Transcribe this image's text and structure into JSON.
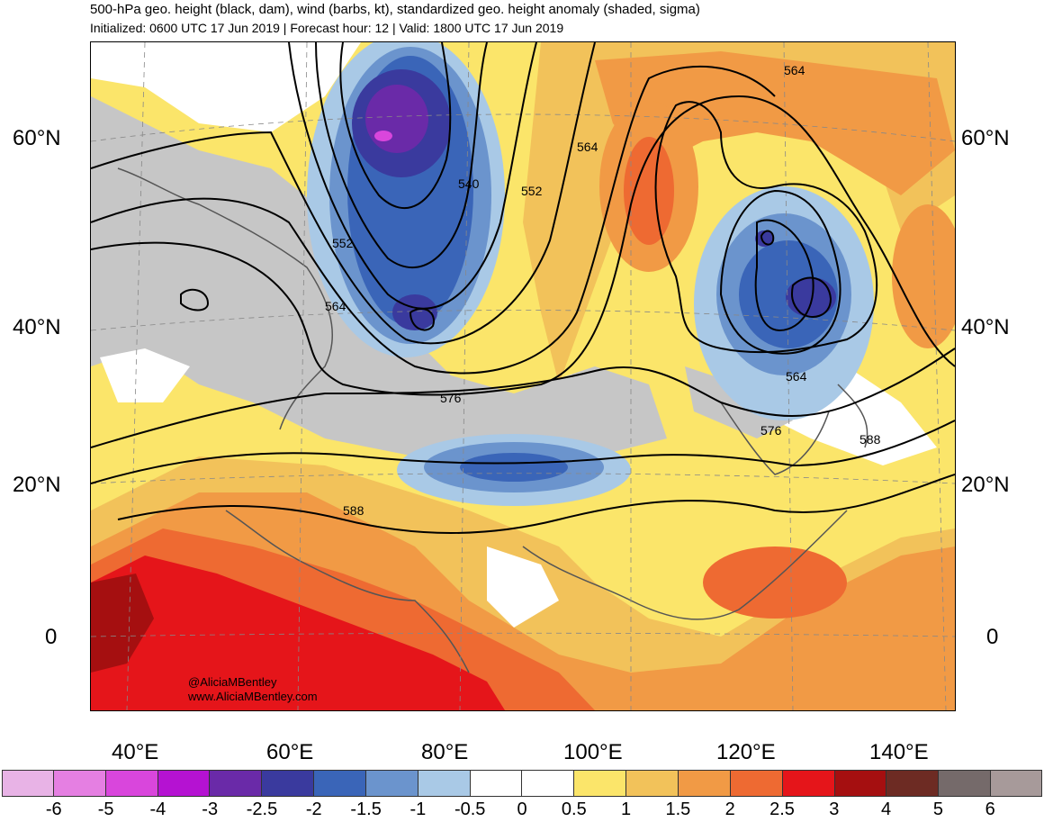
{
  "title": "500-hPa geo. height (black, dam), wind (barbs, kt), standardized geo. height anomaly (shaded, sigma)",
  "subtitle": "Initialized: 0600 UTC 17 Jun 2019 | Forecast hour: 12 | Valid: 1800 UTC 17 Jun 2019",
  "lat_labels": [
    "60°N",
    "40°N",
    "20°N",
    "0"
  ],
  "lon_labels": [
    "40°E",
    "60°E",
    "80°E",
    "100°E",
    "120°E",
    "140°E"
  ],
  "contour_labels": [
    "540",
    "552",
    "552",
    "564",
    "564",
    "564",
    "564",
    "576",
    "576",
    "588",
    "588"
  ],
  "credit": {
    "handle": "@AliciaMBentley",
    "site": "www.AliciaMBentley.com"
  },
  "colorbar": {
    "labels": [
      "-6",
      "-5",
      "-4",
      "-3",
      "-2.5",
      "-2",
      "-1.5",
      "-1",
      "-0.5",
      "0",
      "0.5",
      "1",
      "1.5",
      "2",
      "2.5",
      "3",
      "4",
      "5",
      "6"
    ],
    "colors": [
      "#e8b3e6",
      "#e57fe2",
      "#d946dc",
      "#b512d2",
      "#6a2aa8",
      "#3a3a9e",
      "#3a65b8",
      "#6b94cd",
      "#a9c9e6",
      "#ffffff",
      "#ffffff",
      "#fbe56a",
      "#f2c25a",
      "#f19a45",
      "#ee6a32",
      "#e5151a",
      "#a50f10",
      "#6d2b23",
      "#756a6a",
      "#a79a9a"
    ]
  }
}
